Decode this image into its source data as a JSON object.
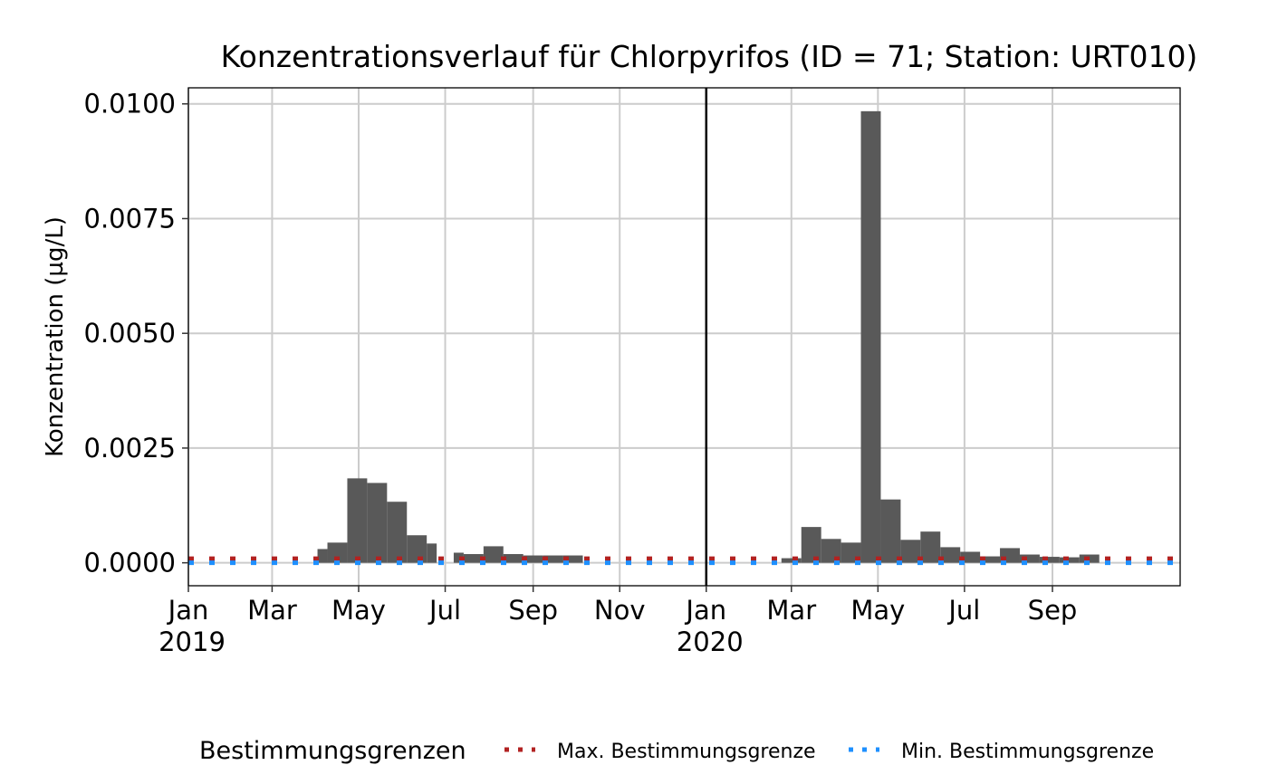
{
  "chart_data": {
    "type": "bar",
    "title": "Konzentrationsverlauf für Chlorpyrifos (ID = 71; Station: URT010)",
    "xlabel": "",
    "ylabel": "Konzentration (µg/L)",
    "xlim": [
      "2019-01-01",
      "2020-11-30"
    ],
    "ylim": [
      -0.0005,
      0.01035
    ],
    "y_ticks": [
      {
        "value": 0.0,
        "label": "0.0000"
      },
      {
        "value": 0.0025,
        "label": "0.0025"
      },
      {
        "value": 0.005,
        "label": "0.0050"
      },
      {
        "value": 0.0075,
        "label": "0.0075"
      },
      {
        "value": 0.01,
        "label": "0.0100"
      }
    ],
    "x_ticks": [
      {
        "date": "2019-01-01",
        "label": "Jan",
        "year": "2019"
      },
      {
        "date": "2019-03-01",
        "label": "Mar",
        "year": ""
      },
      {
        "date": "2019-05-01",
        "label": "May",
        "year": ""
      },
      {
        "date": "2019-07-01",
        "label": "Jul",
        "year": ""
      },
      {
        "date": "2019-09-01",
        "label": "Sep",
        "year": ""
      },
      {
        "date": "2019-11-01",
        "label": "Nov",
        "year": ""
      },
      {
        "date": "2020-01-01",
        "label": "Jan",
        "year": "2020"
      },
      {
        "date": "2020-03-01",
        "label": "Mar",
        "year": ""
      },
      {
        "date": "2020-05-01",
        "label": "May",
        "year": ""
      },
      {
        "date": "2020-07-01",
        "label": "Jul",
        "year": ""
      },
      {
        "date": "2020-09-01",
        "label": "Sep",
        "year": ""
      }
    ],
    "grid": true,
    "bar_color": "#595959",
    "year_divider": "2020-01-01",
    "series": [
      {
        "name": "Konzentration",
        "bars": [
          {
            "start": "2019-04-02",
            "end": "2019-04-09",
            "value": 0.0003
          },
          {
            "start": "2019-04-09",
            "end": "2019-04-23",
            "value": 0.00044
          },
          {
            "start": "2019-04-23",
            "end": "2019-05-07",
            "value": 0.00184
          },
          {
            "start": "2019-05-07",
            "end": "2019-05-21",
            "value": 0.00174
          },
          {
            "start": "2019-05-21",
            "end": "2019-06-04",
            "value": 0.00133
          },
          {
            "start": "2019-06-04",
            "end": "2019-06-18",
            "value": 0.0006
          },
          {
            "start": "2019-06-18",
            "end": "2019-06-25",
            "value": 0.00042
          },
          {
            "start": "2019-07-07",
            "end": "2019-07-14",
            "value": 0.00022
          },
          {
            "start": "2019-07-14",
            "end": "2019-07-28",
            "value": 0.00019
          },
          {
            "start": "2019-07-28",
            "end": "2019-08-11",
            "value": 0.00036
          },
          {
            "start": "2019-08-11",
            "end": "2019-08-25",
            "value": 0.00019
          },
          {
            "start": "2019-08-25",
            "end": "2019-09-08",
            "value": 0.00016
          },
          {
            "start": "2019-09-08",
            "end": "2019-09-22",
            "value": 0.00016
          },
          {
            "start": "2019-09-22",
            "end": "2019-10-06",
            "value": 0.00016
          },
          {
            "start": "2020-02-23",
            "end": "2020-03-08",
            "value": 0.0001
          },
          {
            "start": "2020-03-08",
            "end": "2020-03-22",
            "value": 0.00078
          },
          {
            "start": "2020-03-22",
            "end": "2020-04-05",
            "value": 0.00052
          },
          {
            "start": "2020-04-05",
            "end": "2020-04-19",
            "value": 0.00044
          },
          {
            "start": "2020-04-19",
            "end": "2020-05-03",
            "value": 0.00984
          },
          {
            "start": "2020-05-03",
            "end": "2020-05-17",
            "value": 0.00138
          },
          {
            "start": "2020-05-17",
            "end": "2020-05-31",
            "value": 0.0005
          },
          {
            "start": "2020-05-31",
            "end": "2020-06-14",
            "value": 0.00068
          },
          {
            "start": "2020-06-14",
            "end": "2020-06-28",
            "value": 0.00034
          },
          {
            "start": "2020-06-28",
            "end": "2020-07-12",
            "value": 0.00024
          },
          {
            "start": "2020-07-12",
            "end": "2020-07-26",
            "value": 0.00014
          },
          {
            "start": "2020-07-26",
            "end": "2020-08-09",
            "value": 0.00032
          },
          {
            "start": "2020-08-09",
            "end": "2020-08-23",
            "value": 0.00018
          },
          {
            "start": "2020-08-23",
            "end": "2020-09-06",
            "value": 0.00013
          },
          {
            "start": "2020-09-06",
            "end": "2020-09-20",
            "value": 0.00012
          },
          {
            "start": "2020-09-20",
            "end": "2020-10-04",
            "value": 0.00018
          }
        ]
      }
    ],
    "reference_lines": [
      {
        "name": "Max. Bestimmungsgrenze",
        "value": 9e-05,
        "color": "#B22222",
        "style": "dotted"
      },
      {
        "name": "Min. Bestimmungsgrenze",
        "value": 0.0,
        "color": "#1E90FF",
        "style": "dotted"
      }
    ],
    "legend": {
      "title": "Bestimmungsgrenzen",
      "placement": "bottom",
      "entries": [
        {
          "label": "Max. Bestimmungsgrenze",
          "color": "#B22222"
        },
        {
          "label": "Min. Bestimmungsgrenze",
          "color": "#1E90FF"
        }
      ]
    }
  }
}
